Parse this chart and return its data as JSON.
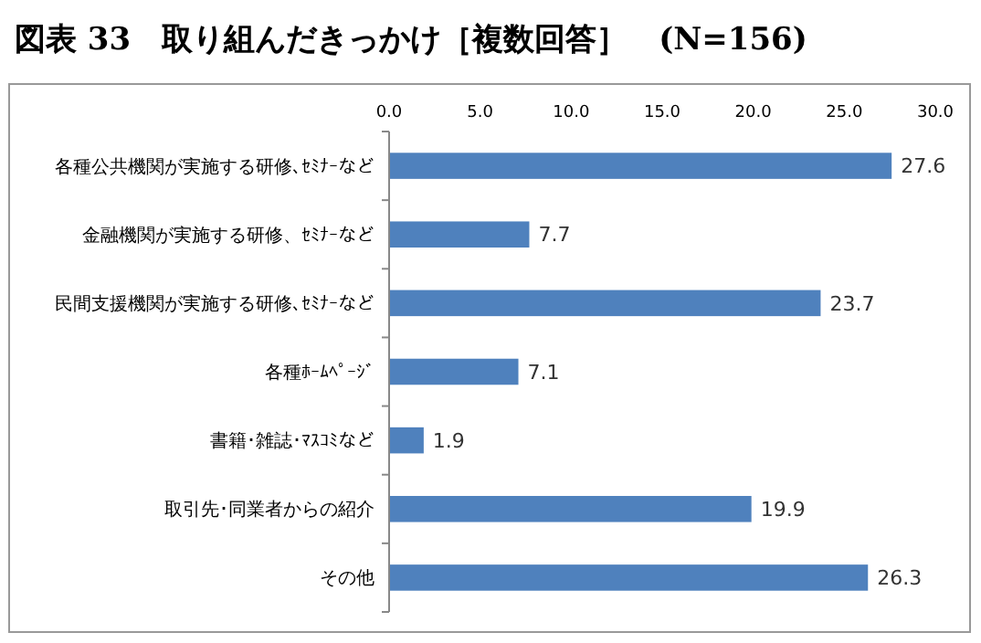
{
  "chart_data": {
    "type": "bar",
    "orientation": "horizontal",
    "title": "図表 33　取り組んだきっかけ［複数回答］　(N=156)",
    "categories": [
      "各種公共機関が実施する研修､ｾﾐﾅｰなど",
      "金融機関が実施する研修、ｾﾐﾅｰなど",
      "民間支援機関が実施する研修､ｾﾐﾅｰなど",
      "各種ﾎｰﾑﾍﾟｰｼﾞ",
      "書籍･雑誌･ﾏｽｺﾐなど",
      "取引先･同業者からの紹介",
      "その他"
    ],
    "values": [
      27.6,
      7.7,
      23.7,
      7.1,
      1.9,
      19.9,
      26.3
    ],
    "color": "#4f81bd",
    "data_labels": true,
    "xlim": [
      0,
      30
    ],
    "xticks": [
      {
        "value": 0,
        "label": "0.0"
      },
      {
        "value": 5,
        "label": "5.0"
      },
      {
        "value": 10,
        "label": "10.0"
      },
      {
        "value": 15,
        "label": "15.0"
      },
      {
        "value": 20,
        "label": "20.0"
      },
      {
        "value": 25,
        "label": "25.0"
      },
      {
        "value": 30,
        "label": "30.0"
      }
    ]
  }
}
